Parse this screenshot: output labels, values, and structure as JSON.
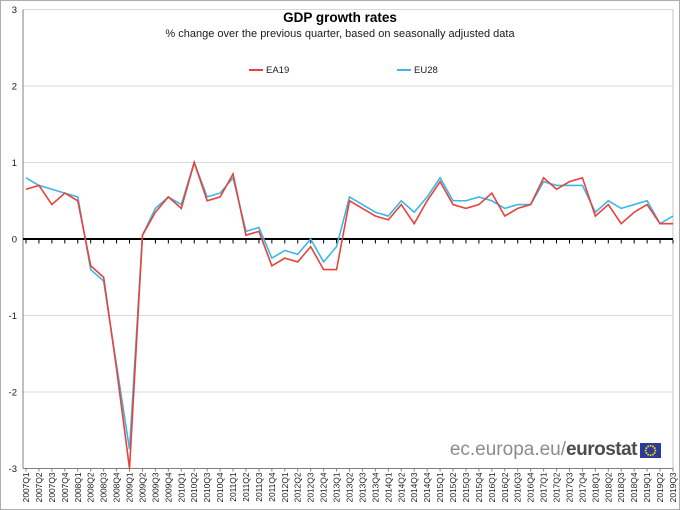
{
  "chart": {
    "title": "GDP growth rates",
    "subtitle": "% change over the previous quarter, based on seasonally adjusted data"
  },
  "footer": {
    "url_prefix": "ec.europa.eu/",
    "brand": "eurostat"
  },
  "chart_data": {
    "type": "line",
    "title": "GDP growth rates",
    "subtitle": "% change over the previous quarter, based on seasonally adjusted data",
    "legend_position": "top",
    "grid": true,
    "ylim": [
      -3,
      3
    ],
    "y_ticks": [
      3,
      2,
      1,
      0,
      -1,
      -2,
      -3
    ],
    "categories": [
      "2007Q1",
      "2007Q2",
      "2007Q3",
      "2007Q4",
      "2008Q1",
      "2008Q2",
      "2008Q3",
      "2008Q4",
      "2009Q1",
      "2009Q2",
      "2009Q3",
      "2009Q4",
      "2010Q1",
      "2010Q2",
      "2010Q3",
      "2010Q4",
      "2011Q1",
      "2011Q2",
      "2011Q3",
      "2011Q4",
      "2012Q1",
      "2012Q2",
      "2012Q3",
      "2012Q4",
      "2013Q1",
      "2013Q2",
      "2013Q3",
      "2013Q4",
      "2014Q1",
      "2014Q2",
      "2014Q3",
      "2014Q4",
      "2015Q1",
      "2015Q2",
      "2015Q3",
      "2015Q4",
      "2016Q1",
      "2016Q2",
      "2016Q3",
      "2016Q4",
      "2017Q1",
      "2017Q2",
      "2017Q3",
      "2017Q4",
      "2018Q1",
      "2018Q2",
      "2018Q3",
      "2018Q4",
      "2019Q1",
      "2019Q2",
      "2019Q3"
    ],
    "series": [
      {
        "name": "EA19",
        "color": "#e8423c",
        "values": [
          0.65,
          0.7,
          0.45,
          0.6,
          0.5,
          -0.35,
          -0.5,
          -1.7,
          -3.0,
          0.05,
          0.35,
          0.55,
          0.4,
          1.0,
          0.5,
          0.55,
          0.85,
          0.05,
          0.1,
          -0.35,
          -0.25,
          -0.3,
          -0.1,
          -0.4,
          -0.4,
          0.5,
          0.4,
          0.3,
          0.25,
          0.45,
          0.2,
          0.5,
          0.75,
          0.45,
          0.4,
          0.45,
          0.6,
          0.3,
          0.4,
          0.45,
          0.8,
          0.65,
          0.75,
          0.8,
          0.3,
          0.45,
          0.2,
          0.35,
          0.45,
          0.2,
          0.2
        ]
      },
      {
        "name": "EU28",
        "color": "#3db7e8",
        "values": [
          0.8,
          0.7,
          0.65,
          0.6,
          0.55,
          -0.4,
          -0.55,
          -1.65,
          -2.75,
          0.05,
          0.4,
          0.55,
          0.45,
          1.0,
          0.55,
          0.6,
          0.8,
          0.1,
          0.15,
          -0.25,
          -0.15,
          -0.2,
          0.0,
          -0.3,
          -0.1,
          0.55,
          0.45,
          0.35,
          0.3,
          0.5,
          0.35,
          0.55,
          0.8,
          0.5,
          0.5,
          0.55,
          0.5,
          0.4,
          0.45,
          0.45,
          0.75,
          0.7,
          0.7,
          0.7,
          0.35,
          0.5,
          0.4,
          0.45,
          0.5,
          0.2,
          0.3
        ]
      }
    ]
  }
}
